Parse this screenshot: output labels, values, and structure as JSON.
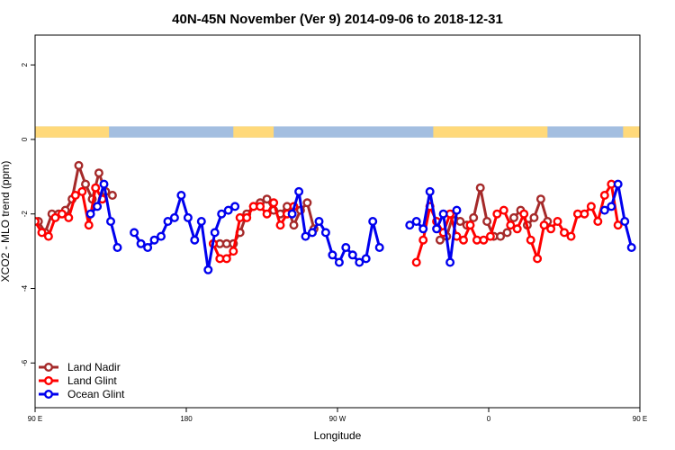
{
  "chart_data": {
    "type": "line",
    "title": "40N-45N November (Ver 9)   2014-09-06 to 2018-12-31",
    "xlabel": "Longitude",
    "ylabel": "XCO2 - MLO trend (ppm)",
    "xlim": [
      90,
      450
    ],
    "ylim": [
      -7.2,
      2.8
    ],
    "xticks": [
      {
        "value": 90,
        "label": "90 E"
      },
      {
        "value": 180,
        "label": "180"
      },
      {
        "value": 270,
        "label": "90 W"
      },
      {
        "value": 360,
        "label": "0"
      },
      {
        "value": 450,
        "label": "90 E"
      },
      {
        "value": 540,
        "label": "180"
      }
    ],
    "yticks": [
      {
        "value": 2,
        "label": "2"
      },
      {
        "value": 0,
        "label": "0"
      },
      {
        "value": -2,
        "label": "-2"
      },
      {
        "value": -4,
        "label": "-4"
      },
      {
        "value": -6,
        "label": "-6"
      }
    ],
    "grid": false,
    "legend": "bottom-left",
    "surface_strip": {
      "y_range": [
        0.05,
        0.35
      ],
      "land_color": "#FFD97A",
      "ocean_color": "#A3BEE0",
      "land_segments": [
        [
          90,
          134
        ],
        [
          208,
          232
        ],
        [
          327,
          395
        ],
        [
          440,
          450
        ]
      ]
    },
    "series": [
      {
        "name": "Land Nadir",
        "color": "#A52A2A",
        "points": [
          [
            92,
            -2.2
          ],
          [
            96,
            -2.5
          ],
          [
            100,
            -2.0
          ],
          [
            104,
            -2.0
          ],
          [
            108,
            -1.9
          ],
          [
            112,
            -1.6
          ],
          [
            116,
            -0.7
          ],
          [
            120,
            -1.2
          ],
          [
            124,
            -1.6
          ],
          [
            128,
            -0.9
          ],
          [
            132,
            -1.4
          ],
          [
            136,
            -1.5
          ],
          [
            200,
            -2.8
          ],
          [
            204,
            -2.8
          ],
          [
            208,
            -2.8
          ],
          [
            212,
            -2.5
          ],
          [
            216,
            -2.0
          ],
          [
            220,
            -1.8
          ],
          [
            224,
            -1.7
          ],
          [
            228,
            -1.6
          ],
          [
            232,
            -1.9
          ],
          [
            236,
            -2.0
          ],
          [
            240,
            -1.8
          ],
          [
            244,
            -2.3
          ],
          [
            248,
            -1.9
          ],
          [
            252,
            -1.7
          ],
          [
            256,
            -2.4
          ],
          [
            331,
            -2.7
          ],
          [
            335,
            -2.6
          ],
          [
            339,
            -2.0
          ],
          [
            343,
            -2.2
          ],
          [
            347,
            -2.3
          ],
          [
            351,
            -2.1
          ],
          [
            355,
            -1.3
          ],
          [
            359,
            -2.2
          ],
          [
            363,
            -2.6
          ],
          [
            367,
            -2.6
          ],
          [
            371,
            -2.5
          ],
          [
            375,
            -2.1
          ],
          [
            379,
            -1.9
          ],
          [
            383,
            -2.3
          ],
          [
            387,
            -2.1
          ],
          [
            391,
            -1.6
          ],
          [
            395,
            -2.2
          ]
        ]
      },
      {
        "name": "Land Glint",
        "color": "#FF0000",
        "points": [
          [
            90,
            -2.2
          ],
          [
            94,
            -2.5
          ],
          [
            98,
            -2.6
          ],
          [
            102,
            -2.1
          ],
          [
            106,
            -2.0
          ],
          [
            110,
            -2.1
          ],
          [
            114,
            -1.5
          ],
          [
            118,
            -1.4
          ],
          [
            122,
            -2.3
          ],
          [
            126,
            -1.3
          ],
          [
            130,
            -1.6
          ],
          [
            196,
            -2.8
          ],
          [
            200,
            -3.2
          ],
          [
            204,
            -3.2
          ],
          [
            208,
            -3.0
          ],
          [
            212,
            -2.1
          ],
          [
            216,
            -2.1
          ],
          [
            220,
            -1.8
          ],
          [
            224,
            -1.8
          ],
          [
            228,
            -2.0
          ],
          [
            232,
            -1.7
          ],
          [
            236,
            -2.3
          ],
          [
            240,
            -2.0
          ],
          [
            244,
            -1.8
          ],
          [
            317,
            -3.3
          ],
          [
            321,
            -2.7
          ],
          [
            325,
            -1.8
          ],
          [
            329,
            -2.2
          ],
          [
            333,
            -2.5
          ],
          [
            337,
            -2.0
          ],
          [
            341,
            -2.6
          ],
          [
            345,
            -2.7
          ],
          [
            349,
            -2.3
          ],
          [
            353,
            -2.7
          ],
          [
            357,
            -2.7
          ],
          [
            361,
            -2.6
          ],
          [
            365,
            -2.0
          ],
          [
            369,
            -1.9
          ],
          [
            373,
            -2.3
          ],
          [
            377,
            -2.4
          ],
          [
            381,
            -2.0
          ],
          [
            385,
            -2.7
          ],
          [
            389,
            -3.2
          ],
          [
            393,
            -2.3
          ],
          [
            397,
            -2.4
          ],
          [
            401,
            -2.2
          ],
          [
            405,
            -2.5
          ],
          [
            409,
            -2.6
          ],
          [
            413,
            -2.0
          ],
          [
            417,
            -2.0
          ],
          [
            421,
            -1.8
          ],
          [
            425,
            -2.2
          ],
          [
            429,
            -1.5
          ],
          [
            433,
            -1.2
          ],
          [
            437,
            -2.3
          ]
        ]
      },
      {
        "name": "Ocean Glint",
        "color": "#0000EE",
        "points": [
          [
            123,
            -2.0
          ],
          [
            127,
            -1.8
          ],
          [
            131,
            -1.2
          ],
          [
            135,
            -2.2
          ],
          [
            139,
            -2.9
          ],
          [
            149,
            -2.5
          ],
          [
            153,
            -2.8
          ],
          [
            157,
            -2.9
          ],
          [
            161,
            -2.7
          ],
          [
            165,
            -2.6
          ],
          [
            169,
            -2.2
          ],
          [
            173,
            -2.1
          ],
          [
            177,
            -1.5
          ],
          [
            181,
            -2.1
          ],
          [
            185,
            -2.7
          ],
          [
            189,
            -2.2
          ],
          [
            193,
            -3.5
          ],
          [
            197,
            -2.5
          ],
          [
            201,
            -2.0
          ],
          [
            205,
            -1.9
          ],
          [
            209,
            -1.8
          ],
          [
            243,
            -2.0
          ],
          [
            247,
            -1.4
          ],
          [
            251,
            -2.6
          ],
          [
            255,
            -2.5
          ],
          [
            259,
            -2.2
          ],
          [
            263,
            -2.5
          ],
          [
            267,
            -3.1
          ],
          [
            271,
            -3.3
          ],
          [
            275,
            -2.9
          ],
          [
            279,
            -3.1
          ],
          [
            283,
            -3.3
          ],
          [
            287,
            -3.2
          ],
          [
            291,
            -2.2
          ],
          [
            295,
            -2.9
          ],
          [
            313,
            -2.3
          ],
          [
            317,
            -2.2
          ],
          [
            321,
            -2.4
          ],
          [
            325,
            -1.4
          ],
          [
            329,
            -2.4
          ],
          [
            333,
            -2.0
          ],
          [
            337,
            -3.3
          ],
          [
            341,
            -1.9
          ],
          [
            429,
            -1.9
          ],
          [
            433,
            -1.8
          ],
          [
            437,
            -1.2
          ],
          [
            441,
            -2.2
          ],
          [
            445,
            -2.9
          ],
          [
            455,
            -2.5
          ],
          [
            459,
            -2.8
          ],
          [
            463,
            -2.9
          ],
          [
            467,
            -2.7
          ]
        ]
      }
    ]
  }
}
